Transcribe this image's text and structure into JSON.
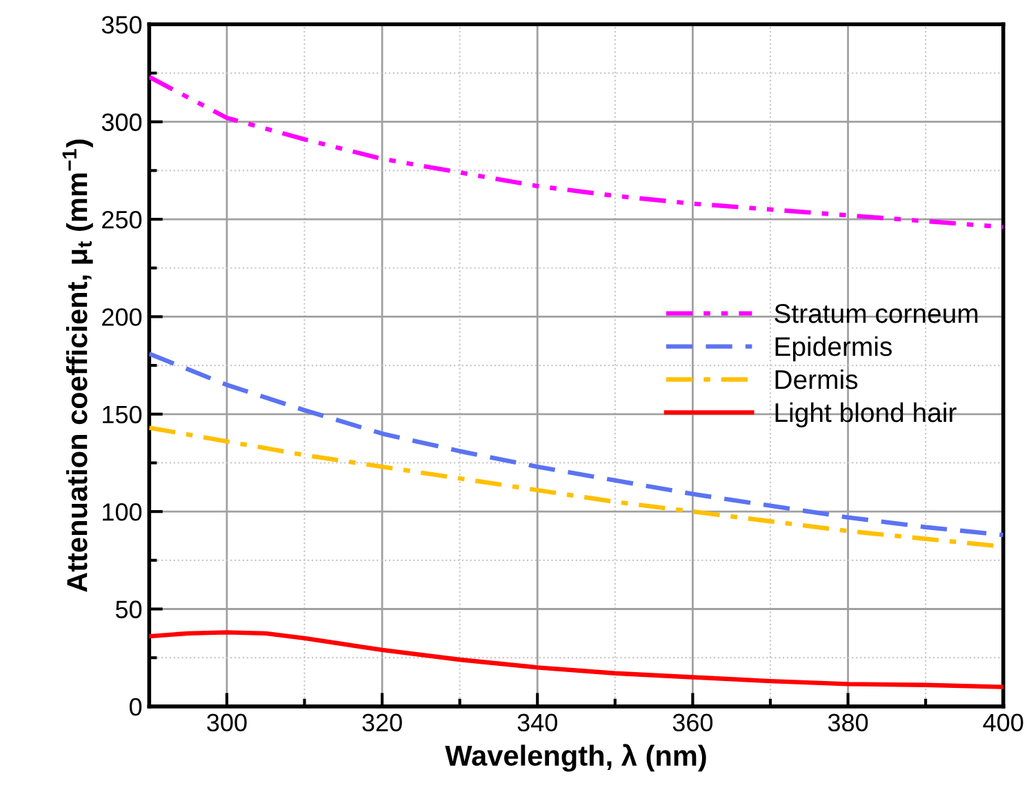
{
  "chart_data": {
    "type": "line",
    "xlabel": "Wavelength, λ (nm)",
    "ylabel": "Attenuation coefficient, μ$_{t}$ (mm$^{−1}$)",
    "xlim": [
      290,
      400
    ],
    "ylim": [
      0,
      350
    ],
    "xticks": [
      300,
      {
        "value": 310,
        "label": null
      },
      320,
      {
        "value": 330,
        "label": null
      },
      340,
      {
        "value": 350,
        "label": null
      },
      360,
      {
        "value": 370,
        "label": null
      },
      380,
      {
        "value": 390,
        "label": null
      },
      400
    ],
    "yticks": [
      0,
      {
        "value": 25,
        "label": null
      },
      50,
      {
        "value": 75,
        "label": null
      },
      100,
      {
        "value": 125,
        "label": null
      },
      150,
      {
        "value": 175,
        "label": null
      },
      200,
      {
        "value": 225,
        "label": null
      },
      250,
      {
        "value": 275,
        "label": null
      },
      300,
      {
        "value": 325,
        "label": null
      },
      350
    ],
    "grid": true,
    "legend": "right",
    "marker": "none",
    "series": [
      {
        "name": "Stratum corneum",
        "color": "#ff00ff",
        "line_style": "dashdotdot",
        "x": [
          290,
          300,
          310,
          320,
          330,
          340,
          350,
          360,
          370,
          380,
          390,
          400
        ],
        "values": [
          323,
          302,
          291,
          281,
          274,
          267,
          262,
          258,
          255,
          252,
          249,
          246
        ]
      },
      {
        "name": "Epidermis",
        "color": "#5b73f2",
        "line_style": "dashed",
        "x": [
          290,
          300,
          310,
          320,
          330,
          340,
          350,
          360,
          370,
          380,
          390,
          400
        ],
        "values": [
          181,
          165,
          152,
          140,
          131,
          123,
          116,
          109,
          103,
          97,
          92,
          88
        ]
      },
      {
        "name": "Dermis",
        "color": "#ffc000",
        "line_style": "dashdot",
        "x": [
          290,
          300,
          310,
          320,
          330,
          340,
          350,
          360,
          370,
          380,
          390,
          400
        ],
        "values": [
          143,
          136,
          129,
          123,
          117,
          111,
          105,
          100,
          95,
          90,
          86,
          82
        ]
      },
      {
        "name": "Light blond hair",
        "color": "#ff0000",
        "line_style": "solid",
        "x": [
          290,
          295,
          300,
          305,
          310,
          320,
          330,
          340,
          350,
          360,
          370,
          380,
          390,
          400
        ],
        "values": [
          36,
          37.5,
          38,
          37.5,
          35,
          29,
          24,
          20,
          17,
          15,
          13,
          11.5,
          11,
          10
        ]
      }
    ]
  }
}
